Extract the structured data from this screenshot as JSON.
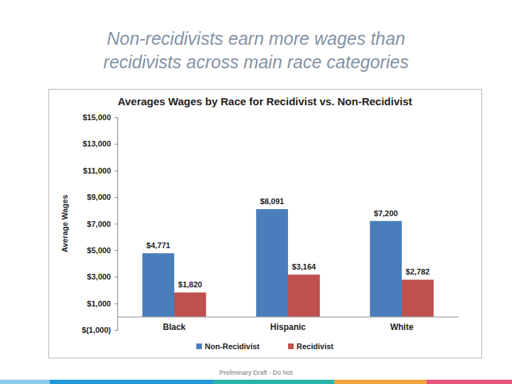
{
  "heading": "Non-recidivists earn more wages than recidivists across main race categories",
  "footer": "Preliminary Draft - Do Not",
  "chart_data": {
    "type": "bar",
    "title": "Averages Wages by Race for Recidivist vs. Non-Recidivist",
    "y_label": "Average Wages",
    "categories": [
      "Black",
      "Hispanic",
      "White"
    ],
    "series": [
      {
        "name": "Non-Recidivist",
        "color": "#4a7ebb",
        "values": [
          4771,
          8091,
          7200
        ],
        "value_labels": [
          "$4,771",
          "$8,091",
          "$7,200"
        ]
      },
      {
        "name": "Recidivist",
        "color": "#c0504d",
        "values": [
          1820,
          3164,
          2782
        ],
        "value_labels": [
          "$1,820",
          "$3,164",
          "$2,782"
        ]
      }
    ],
    "ylim": [
      -1000,
      15000
    ],
    "yticks": [
      {
        "value": -1000,
        "label": "$(1,000)"
      },
      {
        "value": 1000,
        "label": "$1,000"
      },
      {
        "value": 3000,
        "label": "$3,000"
      },
      {
        "value": 5000,
        "label": "$5,000"
      },
      {
        "value": 7000,
        "label": "$7,000"
      },
      {
        "value": 9000,
        "label": "$9,000"
      },
      {
        "value": 11000,
        "label": "$11,000"
      },
      {
        "value": 13000,
        "label": "$13,000"
      },
      {
        "value": 15000,
        "label": "$15,000"
      }
    ],
    "grid": false,
    "legend": "bottom",
    "data_labels": true
  }
}
